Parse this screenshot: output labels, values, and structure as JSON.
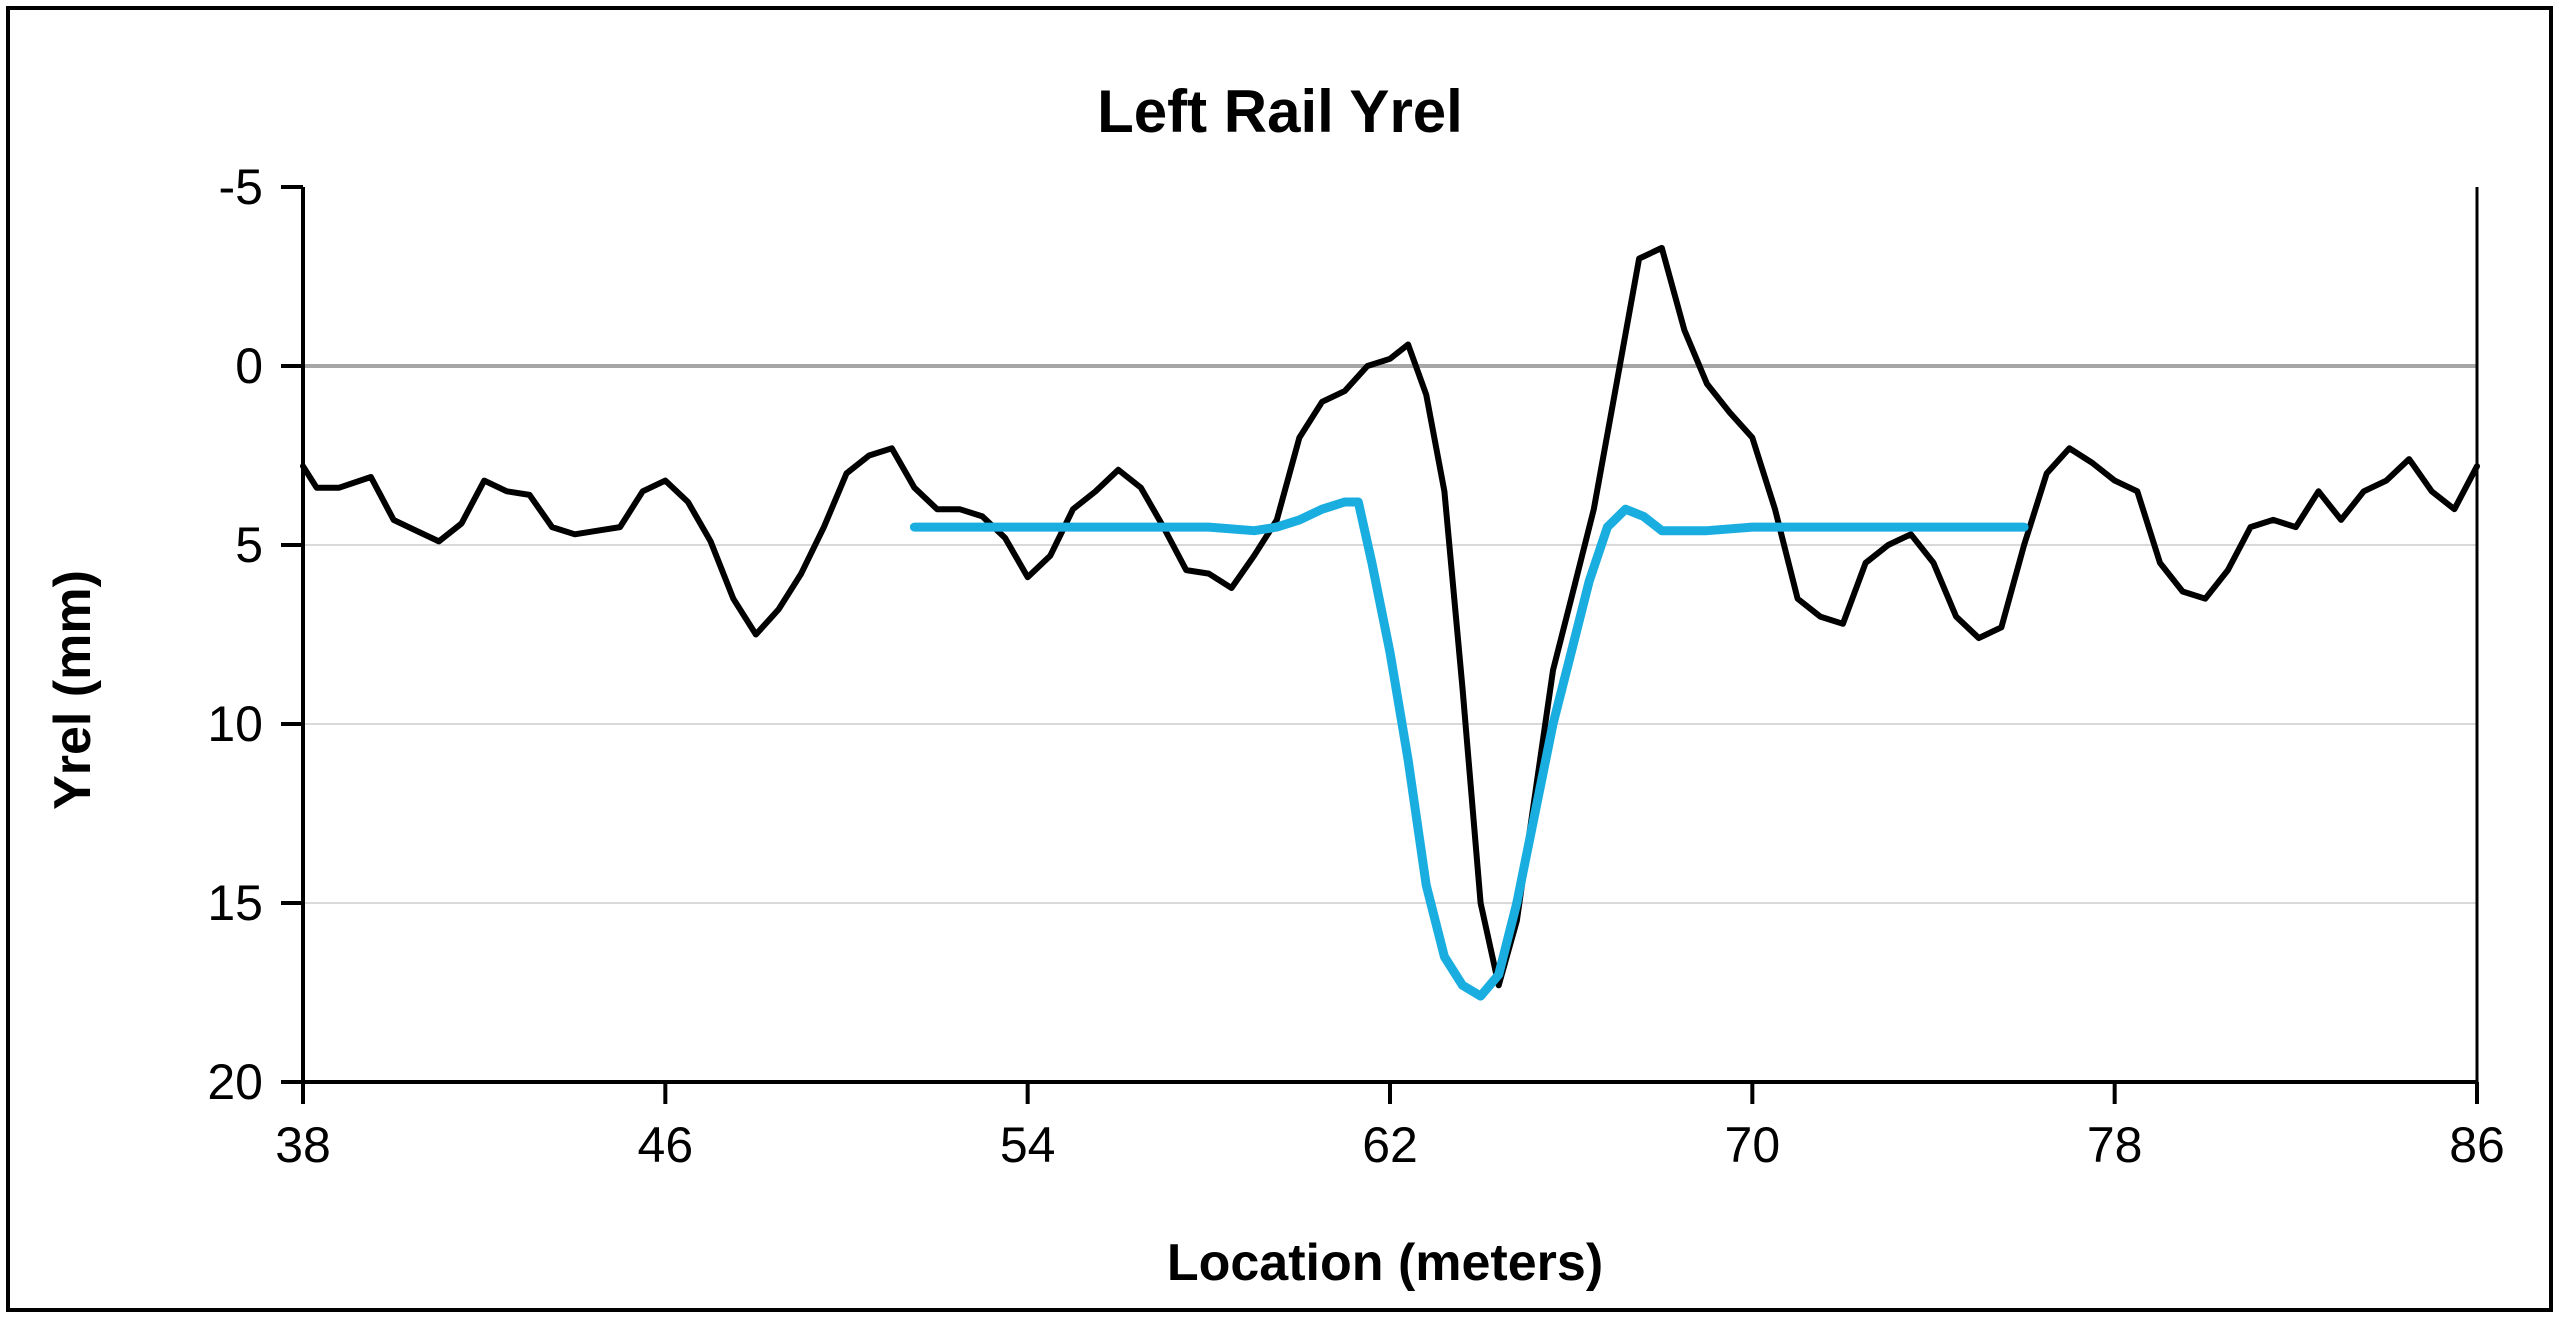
{
  "chart_data": {
    "type": "line",
    "title": "Left Rail Yrel",
    "xlabel": "Location (meters)",
    "ylabel": "Yrel (mm)",
    "xlim": [
      38,
      86
    ],
    "ylim": [
      -5,
      20
    ],
    "y_inverted": true,
    "x_ticks": [
      38,
      46,
      54,
      62,
      70,
      78,
      86
    ],
    "y_ticks": [
      -5,
      0,
      5,
      10,
      15,
      20
    ],
    "grid": "horizontal",
    "legend": "none",
    "series": [
      {
        "color": "#000000",
        "x": [
          38,
          38.3,
          38.8,
          39.5,
          40,
          40.5,
          41,
          41.5,
          42,
          42.5,
          43,
          43.5,
          44,
          44.5,
          45,
          45.5,
          46,
          46.5,
          47,
          47.5,
          48,
          48.5,
          49,
          49.5,
          50,
          50.5,
          51,
          51.5,
          52,
          52.5,
          53,
          53.5,
          54,
          54.5,
          55,
          55.5,
          56,
          56.5,
          57,
          57.5,
          58,
          58.5,
          59,
          59.5,
          60,
          60.5,
          61,
          61.5,
          62,
          62.4,
          62.8,
          63.2,
          63.6,
          64,
          64.4,
          64.8,
          65.2,
          65.6,
          66,
          66.5,
          67,
          67.5,
          68,
          68.5,
          69,
          69.5,
          70,
          70.5,
          71,
          71.5,
          72,
          72.5,
          73,
          73.5,
          74,
          74.5,
          75,
          75.5,
          76,
          76.5,
          77,
          77.5,
          78,
          78.5,
          79,
          79.5,
          80,
          80.5,
          81,
          81.5,
          82,
          82.5,
          83,
          83.5,
          84,
          84.5,
          85,
          85.5,
          86
        ],
        "y": [
          2.8,
          3.4,
          3.4,
          3.1,
          4.3,
          4.6,
          4.9,
          4.4,
          3.2,
          3.5,
          3.6,
          4.5,
          4.7,
          4.6,
          4.5,
          3.5,
          3.2,
          3.8,
          4.9,
          6.5,
          7.5,
          6.8,
          5.8,
          4.5,
          3.0,
          2.5,
          2.3,
          3.4,
          4.0,
          4.0,
          4.2,
          4.8,
          5.9,
          5.3,
          4.0,
          3.5,
          2.9,
          3.4,
          4.5,
          5.7,
          5.8,
          6.2,
          5.3,
          4.3,
          2.0,
          1.0,
          0.7,
          0.0,
          -0.2,
          -0.6,
          0.8,
          3.5,
          9.0,
          15.0,
          17.3,
          15.5,
          12.0,
          8.5,
          6.5,
          4.0,
          0.5,
          -3.0,
          -3.3,
          -1.0,
          0.5,
          1.3,
          2.0,
          4.0,
          6.5,
          7.0,
          7.2,
          5.5,
          5.0,
          4.7,
          5.5,
          7.0,
          7.6,
          7.3,
          5.0,
          3.0,
          2.3,
          2.7,
          3.2,
          3.5,
          5.5,
          6.3,
          6.5,
          5.7,
          4.5,
          4.3,
          4.5,
          3.5,
          4.3,
          3.5,
          3.2,
          2.6,
          3.5,
          4.0,
          2.8
        ]
      },
      {
        "color": "#1aaee0",
        "x": [
          51.5,
          53,
          55,
          57,
          58,
          59,
          59.5,
          60,
          60.5,
          61,
          61.3,
          61.6,
          62,
          62.4,
          62.8,
          63.2,
          63.6,
          64,
          64.4,
          64.8,
          65.2,
          65.6,
          66,
          66.4,
          66.8,
          67.2,
          67.6,
          68,
          68.5,
          69,
          70,
          72,
          74,
          76
        ],
        "y": [
          4.5,
          4.5,
          4.5,
          4.5,
          4.5,
          4.6,
          4.5,
          4.3,
          4.0,
          3.8,
          3.8,
          5.5,
          8.0,
          11.0,
          14.5,
          16.5,
          17.3,
          17.6,
          17.0,
          15.0,
          12.5,
          10.0,
          8.0,
          6.0,
          4.5,
          4.0,
          4.2,
          4.6,
          4.6,
          4.6,
          4.5,
          4.5,
          4.5,
          4.5
        ]
      }
    ]
  }
}
